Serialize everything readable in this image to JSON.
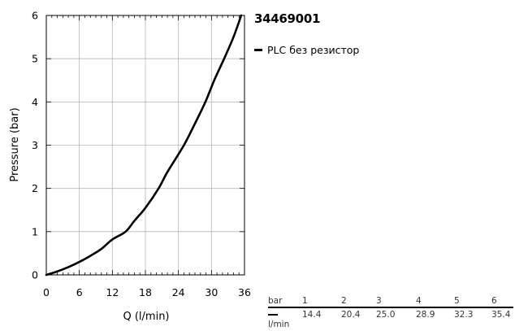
{
  "chart_data": {
    "type": "line",
    "title": "34469001",
    "xlabel": "Q (l/min)",
    "ylabel": "Pressure (bar)",
    "xlim": [
      0,
      36
    ],
    "ylim": [
      0,
      6
    ],
    "x_ticks": [
      "0",
      "6",
      "12",
      "18",
      "24",
      "30",
      "36"
    ],
    "y_ticks": [
      "0",
      "1",
      "2",
      "3",
      "4",
      "5",
      "6"
    ],
    "grid": true,
    "legend_position": "right",
    "series": [
      {
        "name": "PLC без резистор",
        "color": "#000000",
        "points": [
          [
            0,
            0
          ],
          [
            2,
            0.08
          ],
          [
            4,
            0.18
          ],
          [
            6,
            0.3
          ],
          [
            8,
            0.44
          ],
          [
            10,
            0.6
          ],
          [
            12,
            0.82
          ],
          [
            14.4,
            1.0
          ],
          [
            16,
            1.25
          ],
          [
            18,
            1.55
          ],
          [
            20.4,
            2.0
          ],
          [
            22,
            2.38
          ],
          [
            25.0,
            3.0
          ],
          [
            27,
            3.5
          ],
          [
            28.9,
            4.0
          ],
          [
            30.5,
            4.5
          ],
          [
            32.3,
            5.0
          ],
          [
            34,
            5.5
          ],
          [
            35.4,
            6.0
          ]
        ]
      }
    ]
  },
  "table": {
    "header_label": "bar",
    "unit_label": "l/min",
    "pressures": [
      "1",
      "2",
      "3",
      "4",
      "5",
      "6"
    ],
    "flows": [
      "14.4",
      "20.4",
      "25.0",
      "28.9",
      "32.3",
      "35.4"
    ]
  }
}
